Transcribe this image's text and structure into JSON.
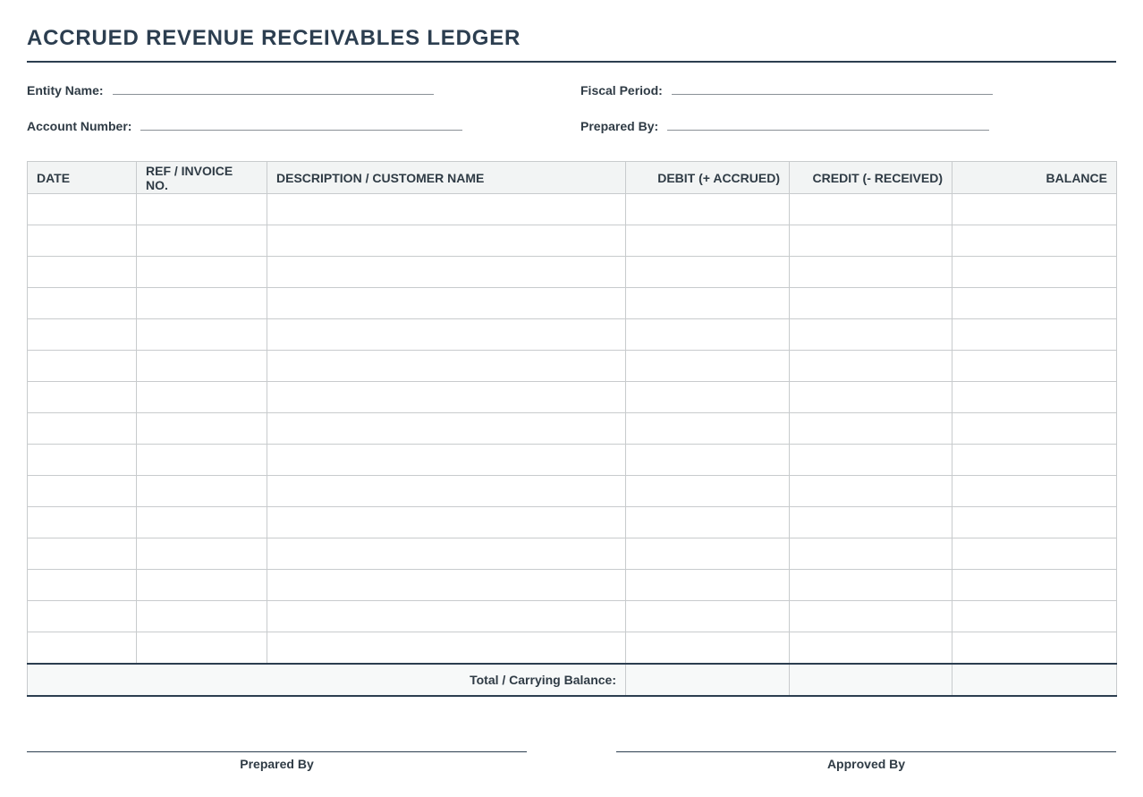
{
  "header": {
    "title": "ACCRUED REVENUE RECEIVABLES LEDGER"
  },
  "fields": [
    {
      "label": "Entity Name:"
    },
    {
      "label": "Fiscal Period:"
    },
    {
      "label": "Account Number:"
    },
    {
      "label": "Prepared By:"
    }
  ],
  "table": {
    "headers": [
      "DATE",
      "REF / INVOICE NO.",
      "DESCRIPTION / CUSTOMER NAME",
      "DEBIT (+ ACCRUED)",
      "CREDIT (- RECEIVED)",
      "BALANCE"
    ],
    "total_label": "Total / Carrying Balance:"
  },
  "signatures": [
    "Prepared By",
    "Approved By"
  ]
}
